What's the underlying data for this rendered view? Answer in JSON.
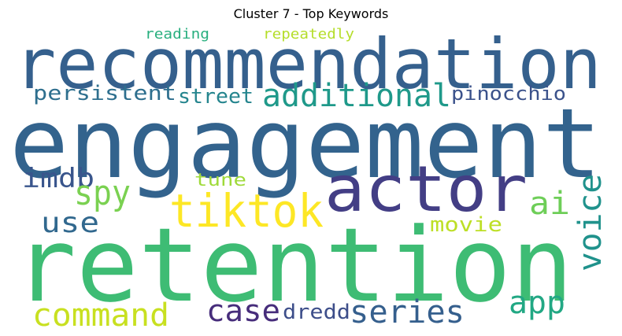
{
  "title": "Cluster 7 - Top Keywords",
  "words": [
    {
      "text": "engagement",
      "color": "#33638d"
    },
    {
      "text": "retention",
      "color": "#3ebc74"
    },
    {
      "text": "recommendation",
      "color": "#35608d"
    },
    {
      "text": "actor",
      "color": "#433e85"
    },
    {
      "text": "tiktok",
      "color": "#fde725"
    },
    {
      "text": "additional",
      "color": "#1f998a"
    },
    {
      "text": "persistent",
      "color": "#2e6f8e"
    },
    {
      "text": "street",
      "color": "#25858e"
    },
    {
      "text": "pinocchio",
      "color": "#3b528b"
    },
    {
      "text": "reading",
      "color": "#29af7f"
    },
    {
      "text": "repeatedly",
      "color": "#b5de2b"
    },
    {
      "text": "imdb",
      "color": "#39558c"
    },
    {
      "text": "spy",
      "color": "#7ad151"
    },
    {
      "text": "use",
      "color": "#31688e"
    },
    {
      "text": "tune",
      "color": "#9fda3a"
    },
    {
      "text": "voice",
      "color": "#20928c"
    },
    {
      "text": "ai",
      "color": "#6ece58"
    },
    {
      "text": "movie",
      "color": "#bddf26"
    },
    {
      "text": "command",
      "color": "#c8e020"
    },
    {
      "text": "case",
      "color": "#472d7b"
    },
    {
      "text": "dredd",
      "color": "#3d4e8a"
    },
    {
      "text": "series",
      "color": "#355f8d"
    },
    {
      "text": "app",
      "color": "#22a884"
    }
  ]
}
